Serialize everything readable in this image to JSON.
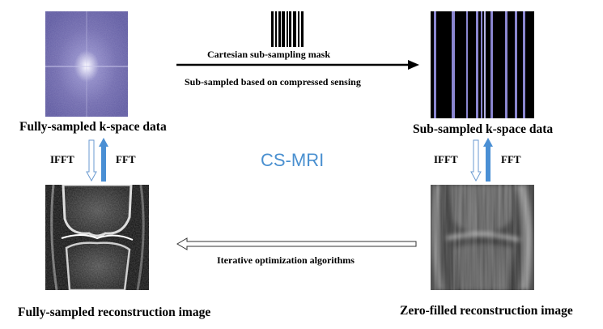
{
  "top_left": {
    "label": "Fully-sampled k-space data",
    "colors": {
      "base": "#6a64a8",
      "center": "#ffffff"
    }
  },
  "top_right": {
    "label": "Sub-sampled k-space data",
    "colors": {
      "base": "#000000",
      "line": "#8a86d0"
    }
  },
  "mask": {
    "label": "Cartesian sub-sampling mask"
  },
  "top_arrow": {
    "label": "Sub-sampled based on compressed sensing"
  },
  "left_pair": {
    "down": "IFFT",
    "up": "FFT"
  },
  "right_pair": {
    "down": "IFFT",
    "up": "FFT"
  },
  "center": {
    "label": "CS-MRI",
    "color": "#4a90d0"
  },
  "bottom_arrow": {
    "label": "Iterative optimization algorithms"
  },
  "bottom_left": {
    "label": "Fully-sampled reconstruction image"
  },
  "bottom_right": {
    "label": "Zero-filled reconstruction image"
  },
  "arrow_colors": {
    "fill_blue": "#4a8fd4",
    "outline_blue": "#4a8fd4"
  }
}
